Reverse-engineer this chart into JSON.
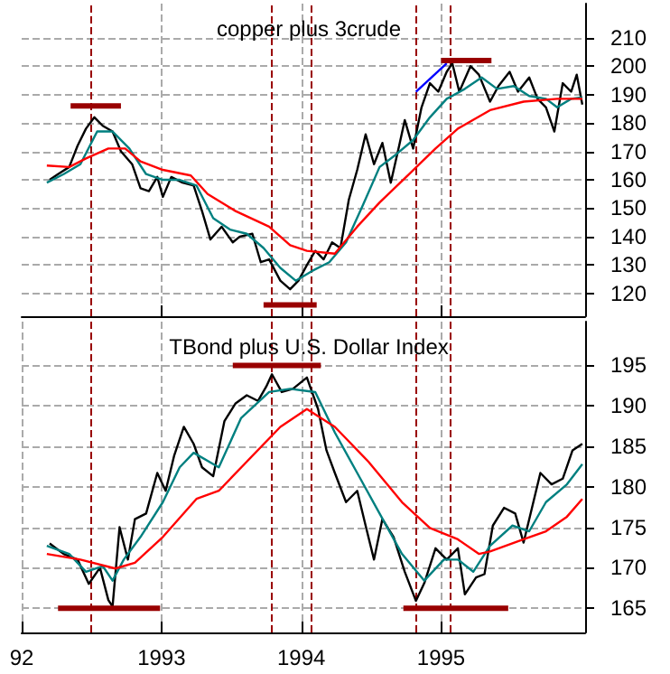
{
  "chart_data": [
    {
      "type": "line",
      "title": "copper plus 3crude",
      "marker": "none",
      "grid": true,
      "tick_labels": "y",
      "xlim": [
        1992.0,
        1996.03
      ],
      "xticks": [
        {
          "value": 1993,
          "label": null
        },
        {
          "value": 1994,
          "label": null
        },
        {
          "value": 1995,
          "label": null
        }
      ],
      "ylim": [
        112,
        222
      ],
      "yticks": [
        120,
        130,
        140,
        150,
        160,
        170,
        180,
        190,
        200,
        210
      ],
      "series": [
        {
          "color": "#000000",
          "x": [
            1992.2,
            1992.26,
            1992.34,
            1992.4,
            1992.46,
            1992.52,
            1992.58,
            1992.65,
            1992.71,
            1992.79,
            1992.85,
            1992.91,
            1992.97,
            1993.01,
            1993.07,
            1993.15,
            1993.23,
            1993.29,
            1993.35,
            1993.43,
            1993.51,
            1993.56,
            1993.65,
            1993.71,
            1993.77,
            1993.85,
            1993.92,
            1993.98,
            1994.04,
            1994.1,
            1994.16,
            1994.22,
            1994.28,
            1994.34,
            1994.4,
            1994.46,
            1994.52,
            1994.58,
            1994.64,
            1994.7,
            1994.74,
            1994.8,
            1994.86,
            1994.92,
            1994.98,
            1995.04,
            1995.08,
            1995.13,
            1995.21,
            1995.27,
            1995.35,
            1995.41,
            1995.49,
            1995.55,
            1995.63,
            1995.69,
            1995.75,
            1995.81,
            1995.87,
            1995.93,
            1995.97,
            1996.01
          ],
          "values": [
            160,
            162,
            164.5,
            172,
            178,
            182,
            179,
            177,
            170,
            165.5,
            157,
            156,
            161,
            154,
            161,
            159,
            158,
            149,
            139,
            143.5,
            138,
            140,
            141,
            131,
            132,
            124.5,
            121.5,
            124.5,
            130,
            135,
            132,
            138,
            136,
            153,
            163.5,
            176,
            165.5,
            173,
            159,
            172,
            181,
            171,
            185.5,
            194,
            191,
            198,
            201,
            191,
            200,
            197,
            187.5,
            193,
            198,
            191,
            196,
            188.5,
            185.5,
            177,
            194,
            191,
            197,
            186.5
          ]
        },
        {
          "color": "#008080",
          "x": [
            1992.18,
            1992.3,
            1992.42,
            1992.54,
            1992.65,
            1992.77,
            1992.89,
            1993.01,
            1993.13,
            1993.25,
            1993.37,
            1993.49,
            1993.61,
            1993.73,
            1993.85,
            1993.96,
            1994.08,
            1994.2,
            1994.32,
            1994.44,
            1994.56,
            1994.68,
            1994.8,
            1994.92,
            1995.04,
            1995.17,
            1995.29,
            1995.4,
            1995.52,
            1995.63,
            1995.75,
            1995.83,
            1995.93,
            1996.01
          ],
          "values": [
            159,
            162,
            165.5,
            177,
            177,
            171,
            162,
            160,
            160,
            158,
            146.5,
            142.5,
            141,
            136,
            129,
            124.5,
            128,
            131,
            138,
            151,
            164.5,
            169,
            174,
            182,
            188.5,
            192,
            196,
            192,
            193,
            189.5,
            188.5,
            185.5,
            188.5,
            189
          ]
        },
        {
          "color": "#ff0000",
          "x": [
            1992.18,
            1992.34,
            1992.46,
            1992.62,
            1992.74,
            1992.85,
            1993.01,
            1993.21,
            1993.33,
            1993.53,
            1993.77,
            1993.92,
            1994.04,
            1994.24,
            1994.4,
            1994.56,
            1994.76,
            1994.96,
            1995.12,
            1995.35,
            1995.59,
            1995.83,
            1996.01
          ],
          "values": [
            165,
            164.5,
            167.5,
            171,
            171,
            166.5,
            163.5,
            161.5,
            155,
            149,
            143.5,
            137,
            135,
            134,
            143.5,
            152,
            161.5,
            171,
            178,
            184.5,
            187.5,
            188.5,
            188.5
          ]
        },
        {
          "color": "#0000ff",
          "x": [
            1994.82,
            1995.04
          ],
          "values": [
            191,
            201
          ]
        },
        {
          "color": "#990000",
          "x": [
            1992.35,
            1992.71
          ],
          "values": [
            186,
            186
          ]
        },
        {
          "color": "#990000",
          "x": [
            1993.73,
            1994.11
          ],
          "values": [
            116,
            116
          ]
        },
        {
          "color": "#990000",
          "x": [
            1995.0,
            1995.36
          ],
          "values": [
            202,
            202
          ]
        }
      ],
      "ref_lines": [
        {
          "axis": "x",
          "value": 1992.5,
          "color": "#990000",
          "line_style": "dashed"
        },
        {
          "axis": "x",
          "value": 1993.79,
          "color": "#990000",
          "line_style": "dashed"
        },
        {
          "axis": "x",
          "value": 1994.07,
          "color": "#990000",
          "line_style": "dashed"
        },
        {
          "axis": "x",
          "value": 1994.82,
          "color": "#990000",
          "line_style": "dashed"
        },
        {
          "axis": "x",
          "value": 1995.06,
          "color": "#990000",
          "line_style": "dashed"
        }
      ]
    },
    {
      "type": "line",
      "title": "TBond plus U.S. Dollar Index",
      "marker": "none",
      "grid": true,
      "xlim": [
        1992.0,
        1996.03
      ],
      "xticks": [
        {
          "value": 1992,
          "label": "92"
        },
        1993,
        1994,
        1995
      ],
      "ylim": [
        162,
        200.4
      ],
      "yticks": [
        165,
        170,
        175,
        180,
        185,
        190,
        195
      ],
      "series": [
        {
          "color": "#000000",
          "x": [
            1992.2,
            1992.3,
            1992.4,
            1992.48,
            1992.56,
            1992.62,
            1992.65,
            1992.7,
            1992.76,
            1992.81,
            1992.89,
            1992.97,
            1993.03,
            1993.09,
            1993.16,
            1993.23,
            1993.29,
            1993.37,
            1993.45,
            1993.53,
            1993.61,
            1993.69,
            1993.75,
            1993.79,
            1993.86,
            1993.94,
            1994.04,
            1994.12,
            1994.18,
            1994.24,
            1994.32,
            1994.4,
            1994.46,
            1994.52,
            1994.58,
            1994.66,
            1994.74,
            1994.82,
            1994.88,
            1994.96,
            1995.04,
            1995.12,
            1995.17,
            1995.25,
            1995.31,
            1995.37,
            1995.45,
            1995.53,
            1995.59,
            1995.65,
            1995.71,
            1995.79,
            1995.87,
            1995.94,
            1996.01
          ],
          "values": [
            173,
            171.7,
            171,
            168,
            170,
            166,
            165.2,
            175,
            171,
            176,
            176.7,
            181.7,
            179.5,
            183.8,
            187.4,
            185.3,
            182.4,
            181.3,
            188.1,
            190.3,
            191.3,
            190.6,
            192.4,
            193.9,
            191.7,
            192.1,
            193.5,
            189.6,
            184.5,
            181.7,
            178.1,
            179.5,
            175.2,
            171,
            176,
            173.8,
            169.5,
            165.9,
            168.1,
            172.4,
            171,
            172.4,
            166.7,
            168.8,
            169.2,
            175.2,
            177.4,
            176.7,
            173.1,
            177.4,
            181.7,
            180.3,
            181,
            184.5,
            185.3
          ]
        },
        {
          "color": "#008080",
          "x": [
            1992.18,
            1992.34,
            1992.46,
            1992.58,
            1992.65,
            1992.73,
            1992.85,
            1993.01,
            1993.13,
            1993.23,
            1993.41,
            1993.57,
            1993.77,
            1993.92,
            1994.1,
            1994.24,
            1994.4,
            1994.56,
            1994.72,
            1994.88,
            1995.02,
            1995.12,
            1995.23,
            1995.35,
            1995.51,
            1995.63,
            1995.75,
            1995.9,
            1996.01
          ],
          "values": [
            172.7,
            171.7,
            169.5,
            170.2,
            168.4,
            171,
            173.8,
            178.1,
            182.4,
            184.2,
            182.4,
            188.5,
            191.7,
            192.1,
            191.7,
            186.7,
            181.7,
            176.7,
            171.7,
            168.4,
            171,
            171,
            169.5,
            172.7,
            175.2,
            174.5,
            178.1,
            180.3,
            182.8
          ]
        },
        {
          "color": "#ff0000",
          "x": [
            1992.18,
            1992.42,
            1992.67,
            1992.81,
            1993.01,
            1993.25,
            1993.41,
            1993.61,
            1993.85,
            1994.04,
            1994.24,
            1994.48,
            1994.72,
            1994.92,
            1995.12,
            1995.27,
            1995.35,
            1995.59,
            1995.75,
            1995.9,
            1996.01
          ],
          "values": [
            171.7,
            171,
            169.9,
            170.6,
            173.8,
            178.5,
            179.5,
            183.1,
            187.4,
            189.6,
            187.4,
            183.1,
            178.1,
            174.9,
            173.5,
            171.7,
            172,
            173.5,
            174.5,
            176.3,
            178.5
          ]
        },
        {
          "color": "#990000",
          "x": [
            1992.26,
            1992.99
          ],
          "values": [
            165,
            165
          ]
        },
        {
          "color": "#990000",
          "x": [
            1993.51,
            1994.14
          ],
          "values": [
            195,
            195
          ]
        },
        {
          "color": "#990000",
          "x": [
            1994.73,
            1995.48
          ],
          "values": [
            165,
            165
          ]
        }
      ],
      "ref_lines": [
        {
          "axis": "x",
          "value": 1992.5,
          "color": "#990000",
          "line_style": "dashed"
        },
        {
          "axis": "x",
          "value": 1993.79,
          "color": "#990000",
          "line_style": "dashed"
        },
        {
          "axis": "x",
          "value": 1994.07,
          "color": "#990000",
          "line_style": "dashed"
        },
        {
          "axis": "x",
          "value": 1994.82,
          "color": "#990000",
          "line_style": "dashed"
        },
        {
          "axis": "x",
          "value": 1995.06,
          "color": "#990000",
          "line_style": "dashed"
        }
      ]
    }
  ]
}
